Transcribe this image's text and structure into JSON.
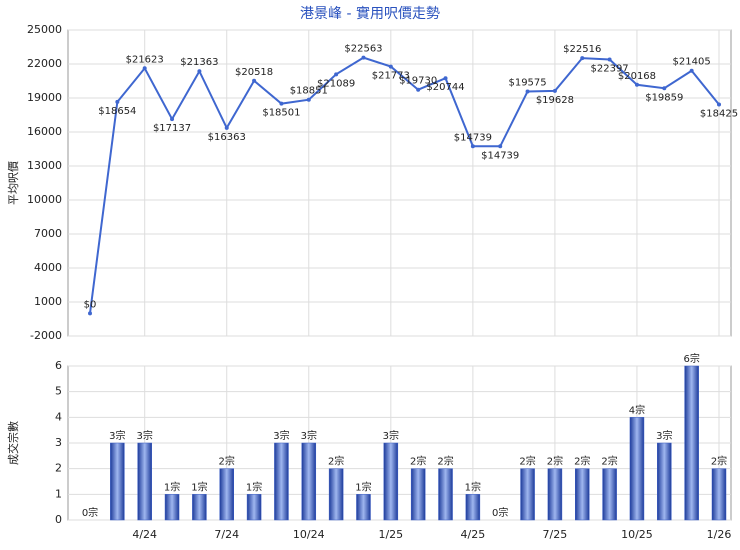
{
  "chart_data": [
    {
      "type": "line",
      "title": "港景峰 - 實用呎價走勢",
      "y_label": "平均呎價",
      "color": "#3f67d0",
      "values": [
        0,
        18654,
        21623,
        17137,
        21363,
        16363,
        20518,
        18501,
        18851,
        21089,
        22563,
        21773,
        19730,
        20744,
        14739,
        14739,
        19575,
        19628,
        22516,
        22397,
        20168,
        19859,
        21405,
        18425
      ],
      "value_labels": [
        "$0",
        "$18654",
        "$21623",
        "$17137",
        "$21363",
        "$16363",
        "$20518",
        "$18501",
        "$18851",
        "$21089",
        "$22563",
        "$21773",
        "$19730",
        "$20744",
        "$14739",
        "$14739",
        "$19575",
        "$19628",
        "$22516",
        "$22397",
        "$20168",
        "$19859",
        "$21405",
        "$18425"
      ],
      "ylim": [
        -2000,
        25000
      ],
      "yticks": [
        -2000,
        1000,
        4000,
        7000,
        10000,
        13000,
        16000,
        19000,
        22000,
        25000
      ],
      "grid": true
    },
    {
      "type": "bar",
      "y_label": "成交宗數",
      "color": "#3a5cc4",
      "categories": [
        null,
        null,
        "4/24",
        null,
        null,
        "7/24",
        null,
        null,
        "10/24",
        null,
        null,
        "1/25",
        null,
        null,
        "4/25",
        null,
        null,
        "7/25",
        null,
        null,
        "10/25",
        null,
        null,
        "1/26"
      ],
      "values": [
        0,
        3,
        3,
        1,
        1,
        2,
        1,
        3,
        3,
        2,
        1,
        3,
        2,
        2,
        1,
        0,
        2,
        2,
        2,
        2,
        4,
        3,
        6,
        2
      ],
      "value_labels": [
        "0宗",
        "3宗",
        "3宗",
        "1宗",
        "1宗",
        "2宗",
        "1宗",
        "3宗",
        "3宗",
        "2宗",
        "1宗",
        "3宗",
        "2宗",
        "2宗",
        "1宗",
        "0宗",
        "2宗",
        "2宗",
        "2宗",
        "2宗",
        "4宗",
        "3宗",
        "6宗",
        "2宗"
      ],
      "ylim": [
        0,
        6
      ],
      "yticks": [
        0,
        1,
        2,
        3,
        4,
        5,
        6
      ],
      "grid": true
    }
  ]
}
